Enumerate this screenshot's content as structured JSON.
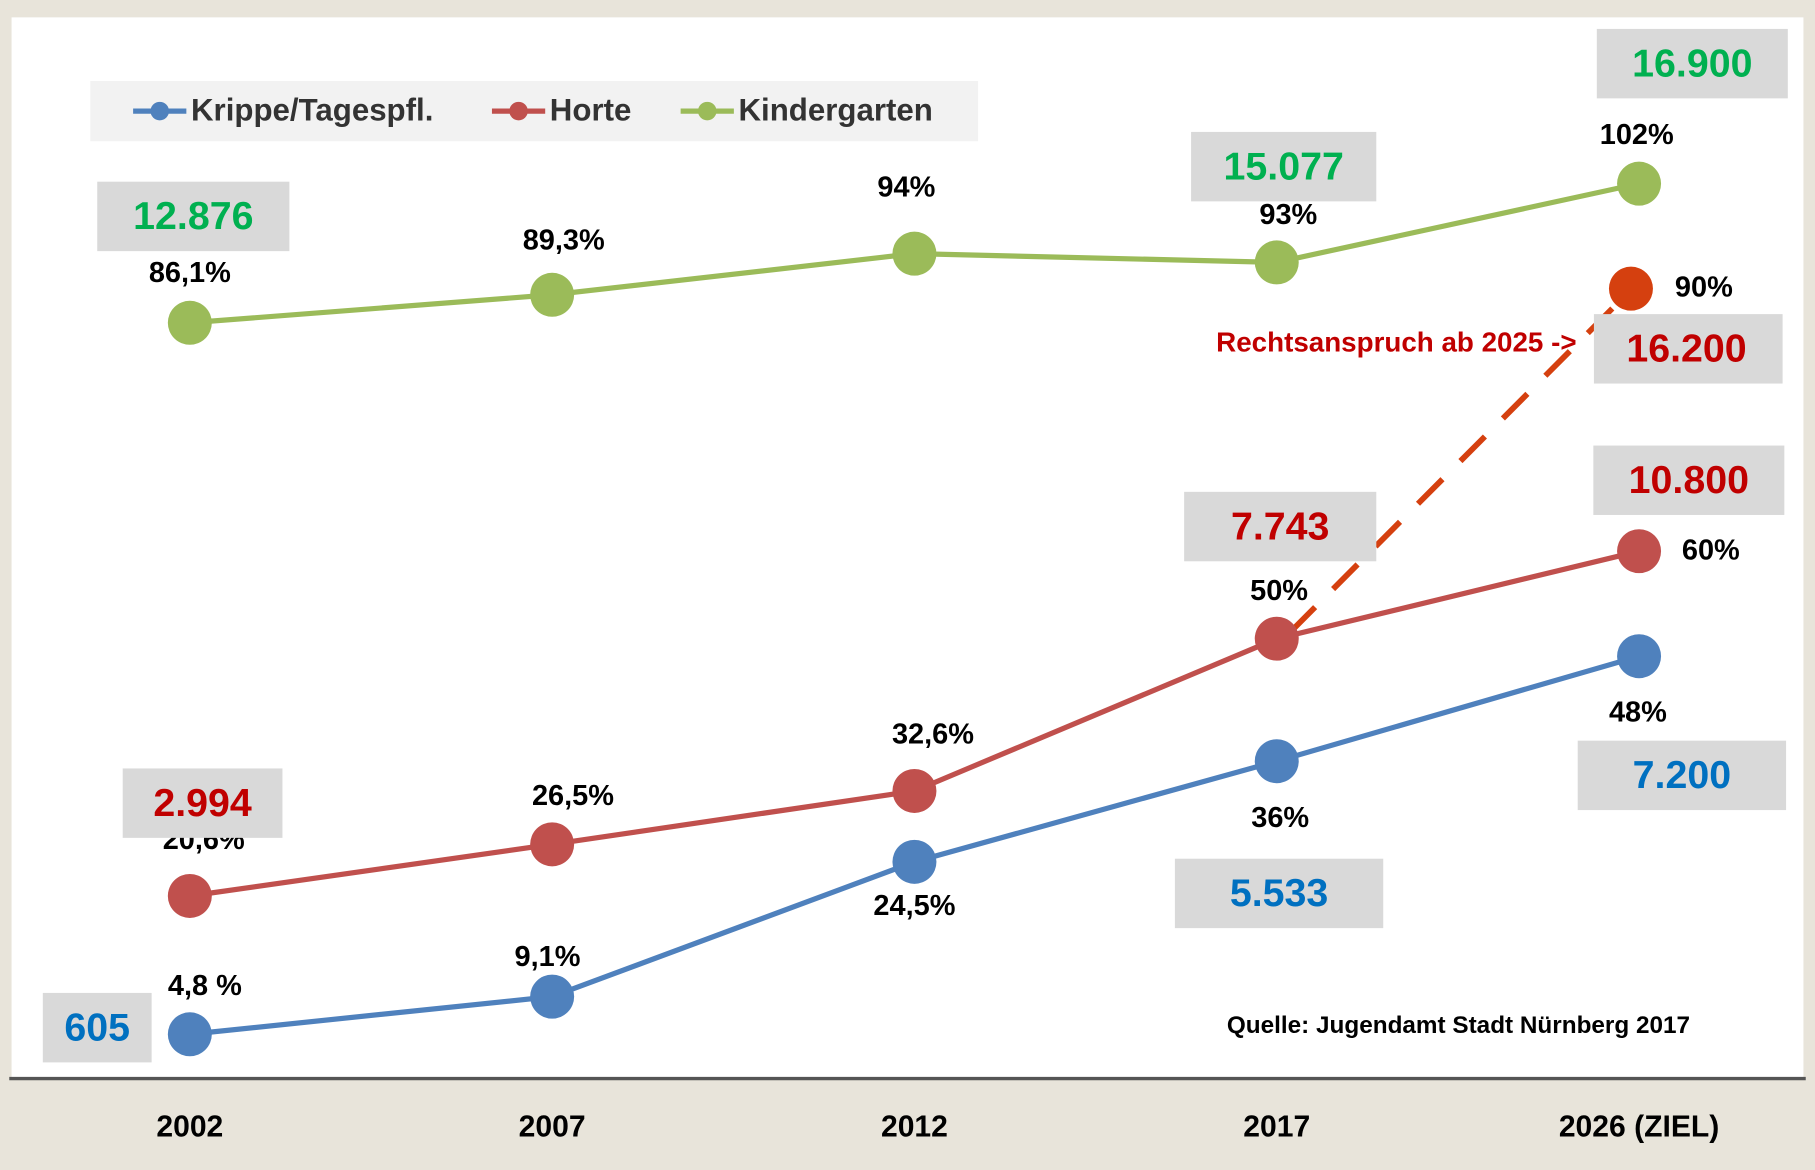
{
  "chart_data": {
    "type": "line",
    "categories": [
      "2002",
      "2007",
      "2012",
      "2017",
      "2026 (ZIEL)"
    ],
    "ylim": [
      0,
      121
    ],
    "legend": true,
    "series": [
      {
        "name": "Krippe/Tagespfl.",
        "color": "#4f81bd",
        "values": [
          4.8,
          9.1,
          24.5,
          36,
          48
        ],
        "value_labels": [
          "4,8 %",
          "9,1%",
          "24,5%",
          "36%",
          "48%"
        ],
        "counts": [
          605,
          null,
          null,
          5533,
          7200
        ],
        "count_labels": [
          "605",
          null,
          null,
          "5.533",
          "7.200"
        ],
        "count_color": "#0070c0"
      },
      {
        "name": "Horte",
        "color": "#c0504d",
        "values": [
          20.6,
          26.5,
          32.6,
          50,
          60
        ],
        "value_labels": [
          "20,6%",
          "26,5%",
          "32,6%",
          "50%",
          "60%"
        ],
        "counts": [
          2994,
          null,
          null,
          7743,
          10800
        ],
        "count_labels": [
          "2.994",
          null,
          null,
          "7.743",
          "10.800"
        ],
        "count_color": "#c00000"
      },
      {
        "name": "Kindergarten",
        "color": "#9bbb59",
        "values": [
          86.1,
          89.3,
          94,
          93,
          102
        ],
        "value_labels": [
          "86,1%",
          "89,3%",
          "94%",
          "93%",
          "102%"
        ],
        "counts": [
          12876,
          null,
          null,
          15077,
          16900
        ],
        "count_labels": [
          "12.876",
          null,
          null,
          "15.077",
          "16.900"
        ],
        "count_color": "#00b050"
      }
    ],
    "projection": {
      "color": "#d5400f",
      "values": [
        null,
        null,
        null,
        null,
        90
      ],
      "value_labels": [
        null,
        null,
        null,
        null,
        "90%"
      ],
      "counts": [
        null,
        null,
        null,
        null,
        16200
      ],
      "count_labels": [
        null,
        null,
        null,
        null,
        "16.200"
      ],
      "count_color": "#c00000"
    },
    "annotation": "Rechtsanspruch ab 2025 ->",
    "source": "Quelle: Jugendamt Stadt Nürnberg 2017"
  }
}
